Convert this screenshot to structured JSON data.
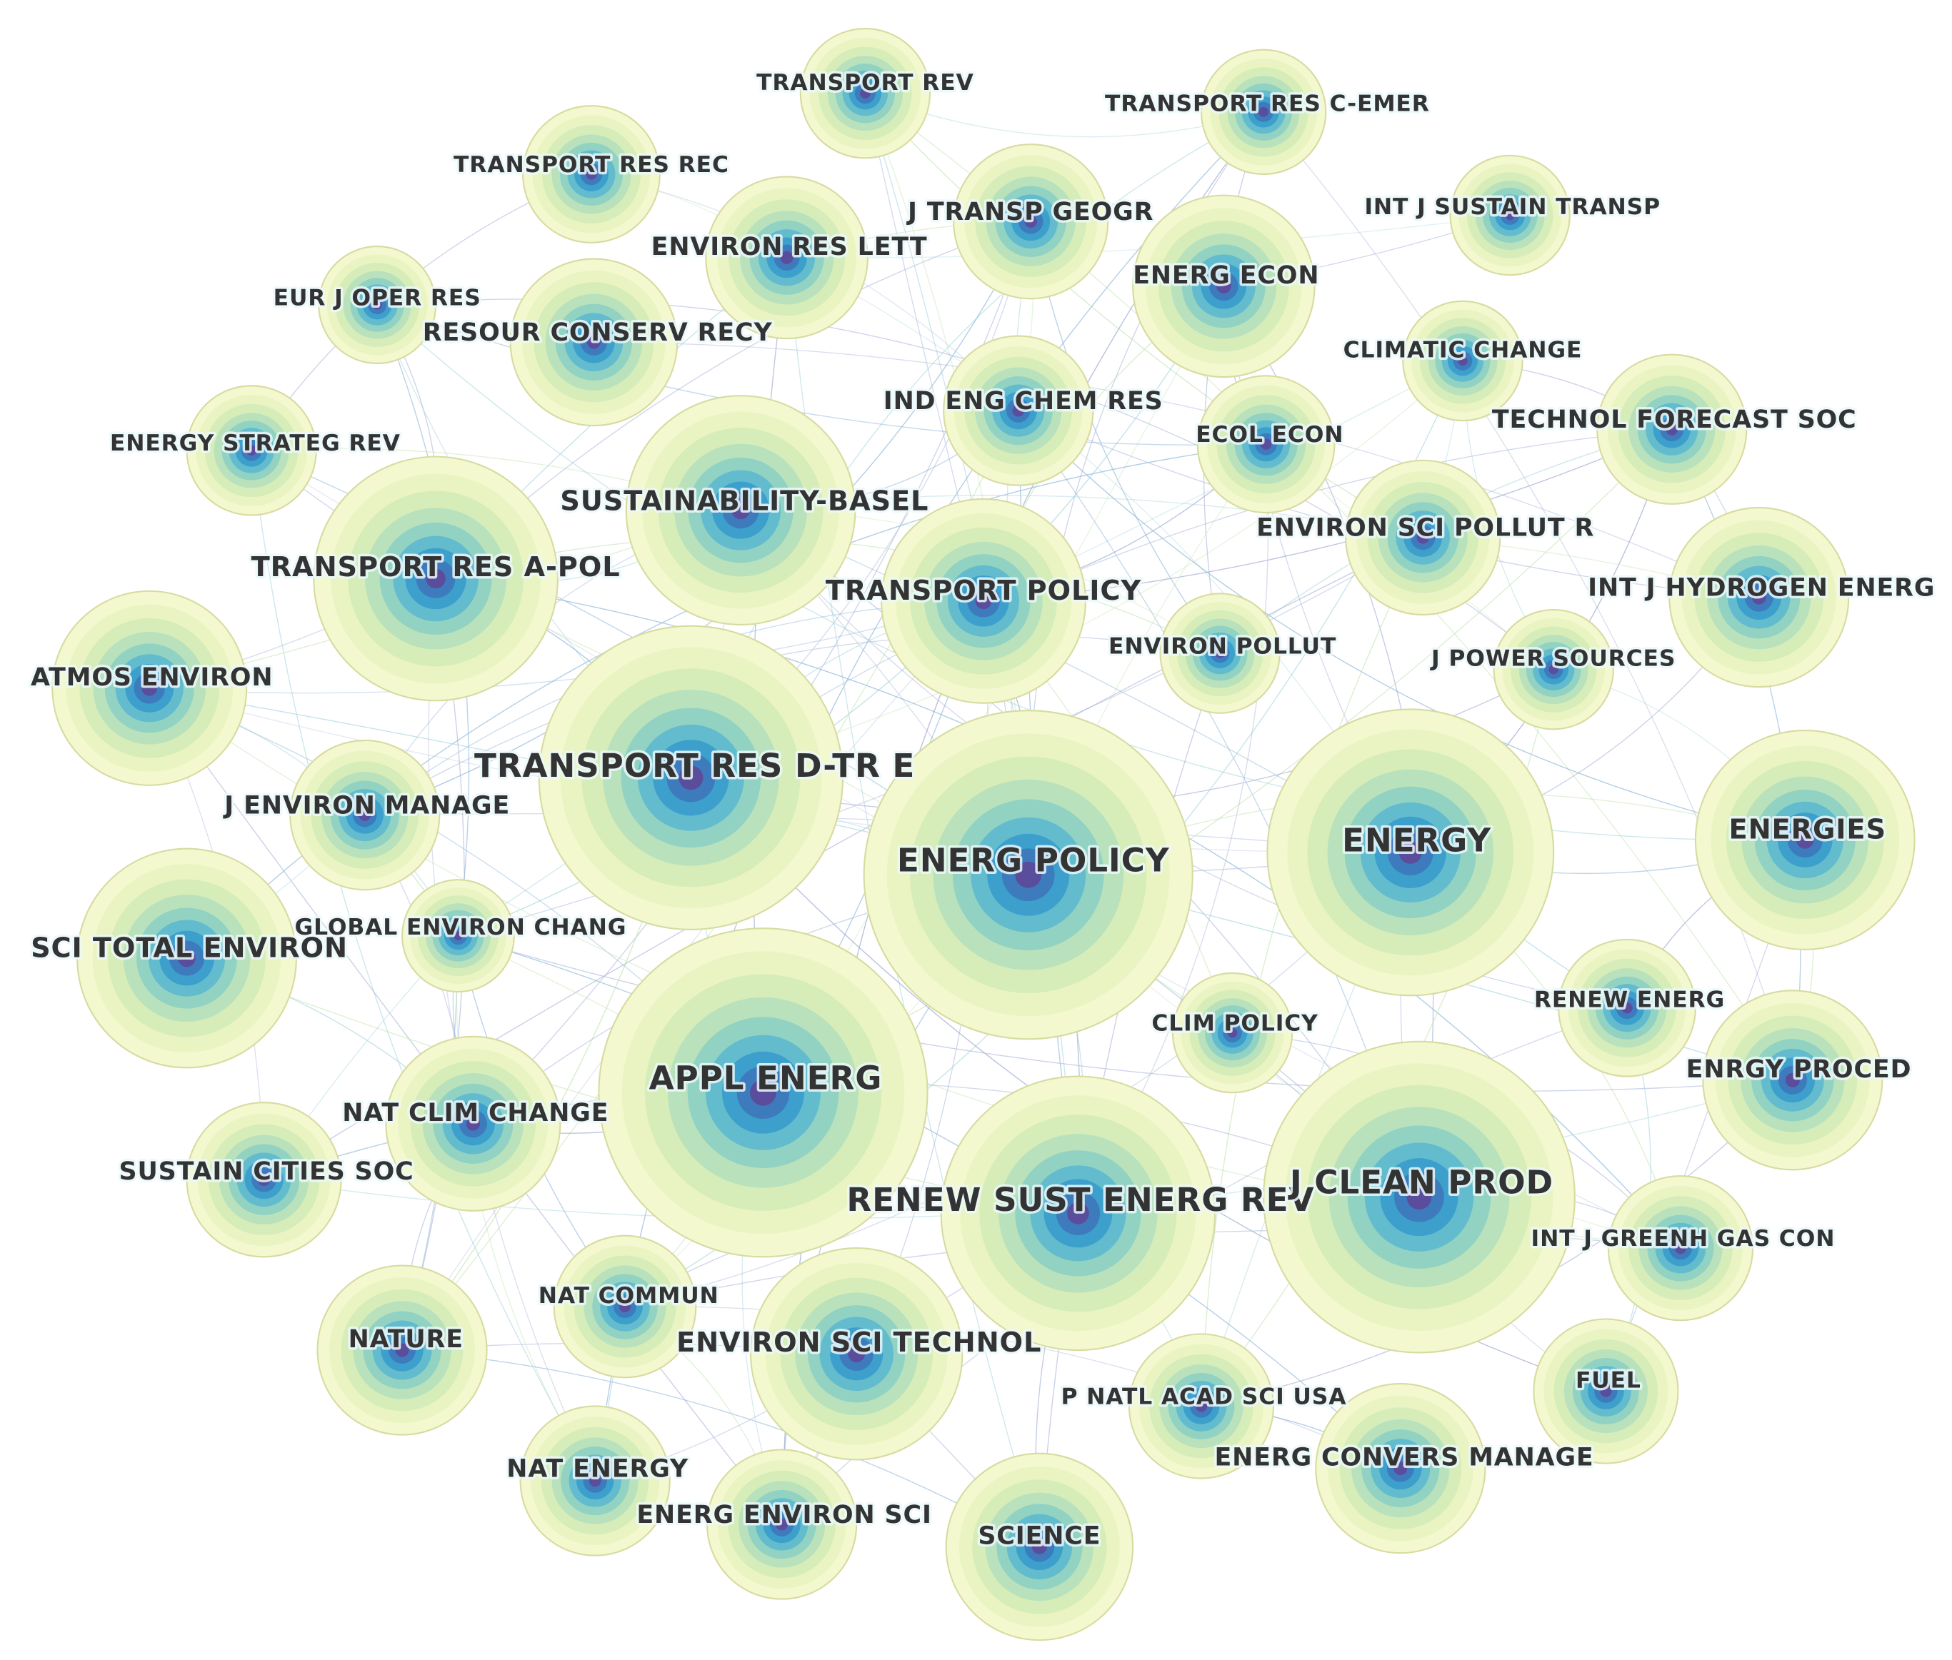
{
  "nodes": [
    {
      "label": "TRANSPORT REV"
    },
    {
      "label": "TRANSPORT RES C-EMER"
    },
    {
      "label": "TRANSPORT RES REC"
    },
    {
      "label": "J TRANSP GEOGR"
    },
    {
      "label": "INT J SUSTAIN TRANSP"
    },
    {
      "label": "ENVIRON RES LETT"
    },
    {
      "label": "ENERG ECON"
    },
    {
      "label": "EUR J OPER RES"
    },
    {
      "label": "RESOUR CONSERV RECY"
    },
    {
      "label": "CLIMATIC CHANGE"
    },
    {
      "label": "IND ENG CHEM RES"
    },
    {
      "label": "TECHNOL FORECAST SOC"
    },
    {
      "label": "ECOL ECON"
    },
    {
      "label": "ENERGY STRATEG REV"
    },
    {
      "label": "SUSTAINABILITY-BASEL"
    },
    {
      "label": "ENVIRON SCI POLLUT R"
    },
    {
      "label": "TRANSPORT RES A-POL"
    },
    {
      "label": "TRANSPORT POLICY"
    },
    {
      "label": "INT J HYDROGEN ENERG"
    },
    {
      "label": "ATMOS ENVIRON"
    },
    {
      "label": "ENVIRON POLLUT"
    },
    {
      "label": "J POWER SOURCES"
    },
    {
      "label": "TRANSPORT RES D-TR E"
    },
    {
      "label": "J ENVIRON MANAGE"
    },
    {
      "label": "ENERGY"
    },
    {
      "label": "ENERGIES"
    },
    {
      "label": "ENERG POLICY"
    },
    {
      "label": "GLOBAL ENVIRON CHANG"
    },
    {
      "label": "SCI TOTAL ENVIRON"
    },
    {
      "label": "CLIM POLICY"
    },
    {
      "label": "RENEW ENERG"
    },
    {
      "label": "ENRGY PROCED"
    },
    {
      "label": "APPL ENERG"
    },
    {
      "label": "NAT CLIM CHANGE"
    },
    {
      "label": "SUSTAIN CITIES SOC"
    },
    {
      "label": "RENEW SUST ENERG REV"
    },
    {
      "label": "J CLEAN PROD"
    },
    {
      "label": "INT J GREENH GAS CON"
    },
    {
      "label": "NAT COMMUN"
    },
    {
      "label": "NATURE"
    },
    {
      "label": "ENVIRON SCI TECHNOL"
    },
    {
      "label": "FUEL"
    },
    {
      "label": "P NATL ACAD SCI USA"
    },
    {
      "label": "ENERG CONVERS MANAGE"
    },
    {
      "label": "NAT ENERGY"
    },
    {
      "label": "ENERG ENVIRON SCI"
    },
    {
      "label": "SCIENCE"
    }
  ]
}
